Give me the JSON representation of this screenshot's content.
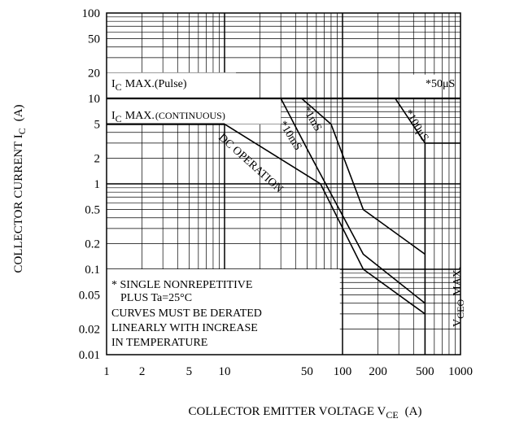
{
  "chart_data": {
    "type": "line",
    "xlabel": "COLLECTOR EMITTER VOLTAGE V",
    "xlabel_sub": "CE",
    "xlabel_unit": "(A)",
    "ylabel": "COLLECTOR CURRENT I",
    "ylabel_sub": "C",
    "ylabel_unit": "(A)",
    "x_scale": "log",
    "y_scale": "log",
    "xlim": [
      1,
      1000
    ],
    "ylim": [
      0.01,
      100
    ],
    "grid": true,
    "x_ticks": [
      {
        "v": 1,
        "label": "1"
      },
      {
        "v": 2,
        "label": "2"
      },
      {
        "v": 5,
        "label": "5"
      },
      {
        "v": 10,
        "label": "10"
      },
      {
        "v": 50,
        "label": "50"
      },
      {
        "v": 100,
        "label": "100"
      },
      {
        "v": 200,
        "label": "200"
      },
      {
        "v": 500,
        "label": "500"
      },
      {
        "v": 1000,
        "label": "1000"
      }
    ],
    "y_ticks": [
      {
        "v": 100,
        "label": "100"
      },
      {
        "v": 50,
        "label": "50"
      },
      {
        "v": 20,
        "label": "20"
      },
      {
        "v": 10,
        "label": "10"
      },
      {
        "v": 5,
        "label": "5"
      },
      {
        "v": 2,
        "label": "2"
      },
      {
        "v": 1,
        "label": "1"
      },
      {
        "v": 0.5,
        "label": "0.5"
      },
      {
        "v": 0.2,
        "label": "0.2"
      },
      {
        "v": 0.1,
        "label": "0.1"
      },
      {
        "v": 0.05,
        "label": "0.05"
      },
      {
        "v": 0.02,
        "label": "0.02"
      },
      {
        "v": 0.01,
        "label": "0.01"
      }
    ],
    "series": [
      {
        "label": "DC OPERATION",
        "x": [
          1,
          10,
          65,
          150,
          500
        ],
        "y": [
          5,
          5,
          1,
          0.1,
          0.03
        ]
      },
      {
        "label": "*10mS",
        "x": [
          1,
          30,
          55,
          150,
          500
        ],
        "y": [
          10,
          10,
          2,
          0.15,
          0.04
        ]
      },
      {
        "label": "*1mS",
        "x": [
          1,
          45,
          80,
          150,
          500
        ],
        "y": [
          10,
          10,
          5,
          0.5,
          0.15
        ]
      },
      {
        "label": "*100μS",
        "x": [
          1,
          280,
          500,
          500
        ],
        "y": [
          10,
          10,
          3,
          0.01
        ]
      }
    ],
    "annotations": {
      "ic_max_pulse_prefix": "I",
      "ic_max_pulse_sub": "C",
      "ic_max_pulse_text": "MAX.(Pulse)",
      "ic_max_cont_prefix": "I",
      "ic_max_cont_sub": "C",
      "ic_max_cont_main": "MAX.",
      "ic_max_cont_paren": "(CONTINUOUS)",
      "pulse_50us": "*50μS",
      "vceo_prefix": "V",
      "vceo_sub": "CEO",
      "vceo_text": "MAX.",
      "notes": [
        "* SINGLE NONREPETITIVE",
        "PLUS Ta=25°C",
        "CURVES MUST BE DERATED",
        "LINEARLY WITH INCREASE",
        "IN TEMPERATURE"
      ]
    }
  }
}
